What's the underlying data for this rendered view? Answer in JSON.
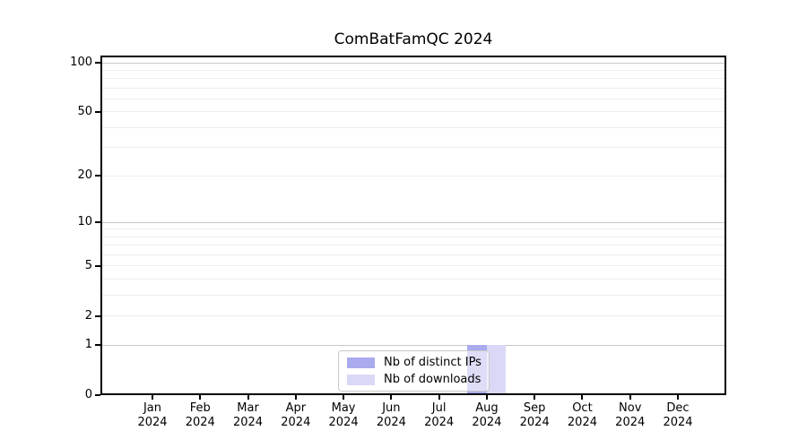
{
  "chart_data": {
    "type": "bar",
    "title": "ComBatFamQC 2024",
    "categories": [
      "Jan 2024",
      "Feb 2024",
      "Mar 2024",
      "Apr 2024",
      "May 2024",
      "Jun 2024",
      "Jul 2024",
      "Aug 2024",
      "Sep 2024",
      "Oct 2024",
      "Nov 2024",
      "Dec 2024"
    ],
    "series": [
      {
        "name": "Nb of distinct IPs",
        "color": "#aaaaee",
        "values": [
          0,
          0,
          0,
          0,
          0,
          0,
          0,
          1,
          0,
          0,
          0,
          0
        ]
      },
      {
        "name": "Nb of downloads",
        "color": "#d9d9f7",
        "values": [
          0,
          0,
          0,
          0,
          0,
          0,
          0,
          1,
          0,
          0,
          0,
          0
        ]
      }
    ],
    "xlabel": "",
    "ylabel": "",
    "yscale": "log1p",
    "ylim": [
      0,
      110
    ],
    "yticks": [
      0,
      1,
      2,
      5,
      10,
      20,
      50,
      100
    ],
    "grid_major": [
      1,
      10,
      100
    ],
    "grid_minor": [
      2,
      3,
      4,
      5,
      6,
      7,
      8,
      9,
      20,
      30,
      40,
      50,
      60,
      70,
      80,
      90
    ],
    "grid": "on",
    "legend_position": "lower center",
    "colors": {
      "grid_major": "#c9c9c9",
      "grid_minor": "#ededed",
      "axis": "#000000",
      "legend_border": "#c9c9c9",
      "background": "#ffffff"
    }
  }
}
